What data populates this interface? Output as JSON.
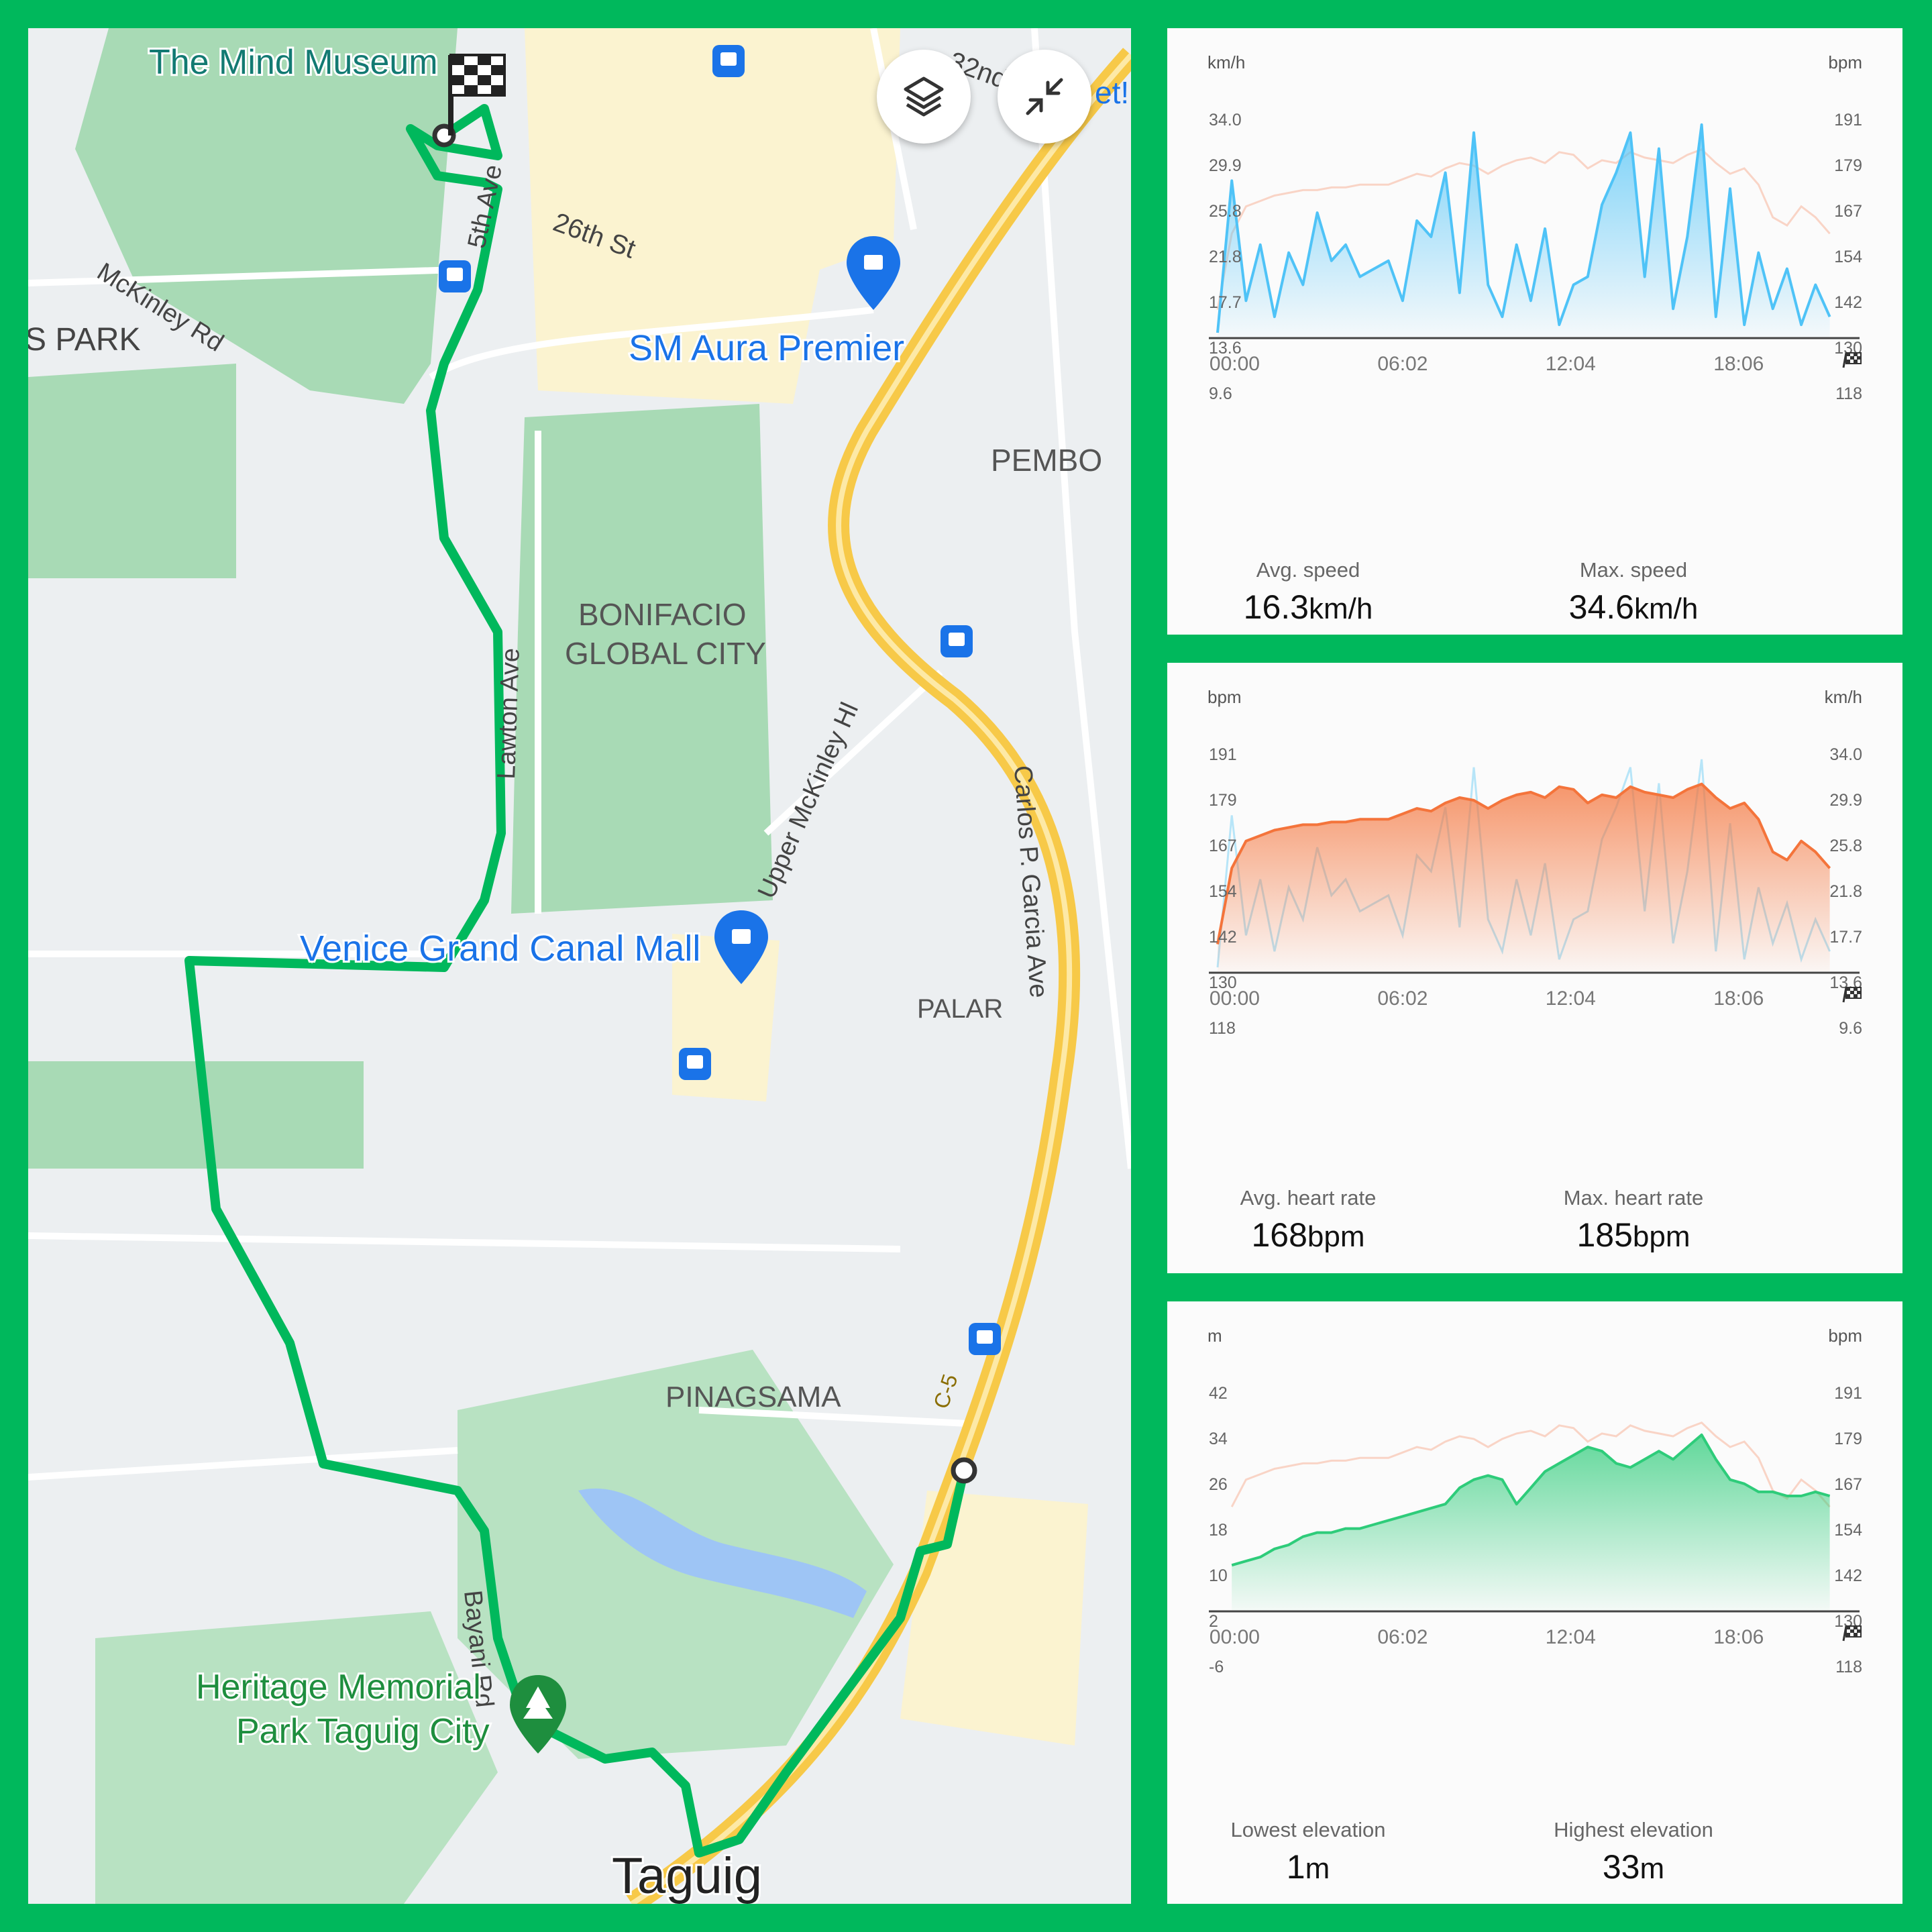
{
  "map": {
    "labels": {
      "mind_museum": "The Mind Museum",
      "street_32nd": "32nd",
      "street_cut": "et!",
      "fifth_ave": "5th Ave",
      "st_26th": "26th St",
      "mckinley_rd": "McKinley Rd",
      "s_park": "S PARK",
      "sm_aura": "SM Aura Premier",
      "pembo": "PEMBO",
      "bgc_line1": "BONIFACIO",
      "bgc_line2": "GLOBAL CITY",
      "lawton_ave": "Lawton Ave",
      "upper_mckinley": "Upper McKinley Hl",
      "carlos_garcia": "Carlos P. Garcia Ave",
      "venice_mall": "Venice Grand Canal Mall",
      "palar": "PALAR",
      "pinagsama": "PINAGSAMA",
      "c5": "C-5",
      "bayani_rd": "Bayani Rd",
      "heritage_line1": "Heritage Memorial",
      "heritage_line2": "Park Taguig City",
      "taguig": "Taguig"
    },
    "icons": [
      "layers-icon",
      "collapse-icon",
      "checkered-flag-icon",
      "bus-stop-icon",
      "shopping-bag-icon",
      "tree-icon"
    ],
    "route_color": "#00b85c"
  },
  "charts": {
    "speed": {
      "left_unit": "km/h",
      "right_unit": "bpm",
      "left_ticks": [
        "34.0",
        "29.9",
        "25.8",
        "21.8",
        "17.7",
        "13.6",
        "9.6"
      ],
      "right_ticks": [
        "191",
        "179",
        "167",
        "154",
        "142",
        "130",
        "118"
      ],
      "x_ticks": [
        "00:00",
        "06:02",
        "12:04",
        "18:06"
      ],
      "stats": [
        {
          "label": "Avg. speed",
          "value": "16.3",
          "unit": "km/h"
        },
        {
          "label": "Max. speed",
          "value": "34.6",
          "unit": "km/h"
        }
      ],
      "color": "#4fc3f7"
    },
    "heart_rate": {
      "left_unit": "bpm",
      "right_unit": "km/h",
      "left_ticks": [
        "191",
        "179",
        "167",
        "154",
        "142",
        "130",
        "118"
      ],
      "right_ticks": [
        "34.0",
        "29.9",
        "25.8",
        "21.8",
        "17.7",
        "13.6",
        "9.6"
      ],
      "x_ticks": [
        "00:00",
        "06:02",
        "12:04",
        "18:06"
      ],
      "stats": [
        {
          "label": "Avg. heart rate",
          "value": "168",
          "unit": "bpm"
        },
        {
          "label": "Max. heart rate",
          "value": "185",
          "unit": "bpm"
        }
      ],
      "color": "#f4743b"
    },
    "elevation": {
      "left_unit": "m",
      "right_unit": "bpm",
      "left_ticks": [
        "42",
        "34",
        "26",
        "18",
        "10",
        "2",
        "-6"
      ],
      "right_ticks": [
        "191",
        "179",
        "167",
        "154",
        "142",
        "130",
        "118"
      ],
      "x_ticks": [
        "00:00",
        "06:02",
        "12:04",
        "18:06"
      ],
      "stats": [
        {
          "label": "Lowest elevation",
          "value": "1",
          "unit": "m"
        },
        {
          "label": "Highest elevation",
          "value": "33",
          "unit": "m"
        }
      ],
      "color": "#2ecc7a"
    }
  },
  "chart_data": [
    {
      "type": "area",
      "title": "",
      "xlabel": "",
      "ylabel": "km/h",
      "ylim": [
        7.5,
        36
      ],
      "x": [
        0,
        0.5,
        1,
        1.5,
        2,
        2.5,
        3,
        3.5,
        4,
        4.5,
        5,
        5.5,
        6,
        6.5,
        7,
        7.5,
        8,
        8.5,
        9,
        9.5,
        10,
        10.5,
        11,
        11.5,
        12,
        12.5,
        13,
        13.5,
        14,
        14.5,
        15,
        15.5,
        16,
        16.5,
        17,
        17.5,
        18,
        18.5,
        19,
        19.5,
        20,
        20.5,
        21,
        21.5
      ],
      "series": [
        {
          "name": "",
          "values": [
            8,
            27,
            12,
            19,
            10,
            18,
            14,
            23,
            17,
            19,
            15,
            16,
            17,
            12,
            22,
            20,
            28,
            13,
            33,
            14,
            10,
            19,
            12,
            21,
            9,
            14,
            15,
            24,
            28,
            33,
            15,
            31,
            11,
            20,
            34,
            10,
            26,
            9,
            18,
            11,
            16,
            9,
            14,
            10
          ]
        },
        {
          "name": "",
          "values": [
            122,
            150,
            160,
            162,
            164,
            165,
            166,
            166,
            167,
            167,
            168,
            168,
            168,
            170,
            172,
            171,
            174,
            176,
            175,
            172,
            175,
            177,
            178,
            176,
            180,
            179,
            174,
            177,
            176,
            180,
            178,
            177,
            176,
            179,
            181,
            176,
            172,
            174,
            168,
            156,
            153,
            160,
            156,
            150
          ]
        }
      ],
      "x_ticks": [
        "00:00",
        "06:02",
        "12:04",
        "18:06"
      ]
    },
    {
      "type": "area",
      "title": "",
      "xlabel": "",
      "ylabel": "bpm",
      "ylim": [
        112,
        196
      ],
      "x": [
        0,
        0.5,
        1,
        1.5,
        2,
        2.5,
        3,
        3.5,
        4,
        4.5,
        5,
        5.5,
        6,
        6.5,
        7,
        7.5,
        8,
        8.5,
        9,
        9.5,
        10,
        10.5,
        11,
        11.5,
        12,
        12.5,
        13,
        13.5,
        14,
        14.5,
        15,
        15.5,
        16,
        16.5,
        17,
        17.5,
        18,
        18.5,
        19,
        19.5,
        20,
        20.5,
        21,
        21.5
      ],
      "series": [
        {
          "name": "",
          "values": [
            122,
            150,
            160,
            162,
            164,
            165,
            166,
            166,
            167,
            167,
            168,
            168,
            168,
            170,
            172,
            171,
            174,
            176,
            175,
            172,
            175,
            177,
            178,
            176,
            180,
            179,
            174,
            177,
            176,
            180,
            178,
            177,
            176,
            179,
            181,
            176,
            172,
            174,
            168,
            156,
            153,
            160,
            156,
            150
          ]
        },
        {
          "name": "",
          "values": [
            8,
            27,
            12,
            19,
            10,
            18,
            14,
            23,
            17,
            19,
            15,
            16,
            17,
            12,
            22,
            20,
            28,
            13,
            33,
            14,
            10,
            19,
            12,
            21,
            9,
            14,
            15,
            24,
            28,
            33,
            15,
            31,
            11,
            20,
            34,
            10,
            26,
            9,
            18,
            11,
            16,
            9,
            14,
            10
          ]
        }
      ],
      "x_ticks": [
        "00:00",
        "06:02",
        "12:04",
        "18:06"
      ]
    },
    {
      "type": "area",
      "title": "",
      "xlabel": "",
      "ylabel": "m",
      "ylim": [
        -10,
        46
      ],
      "x": [
        0.5,
        1,
        1.5,
        2,
        2.5,
        3,
        3.5,
        4,
        4.5,
        5,
        5.5,
        6,
        6.5,
        7,
        7.5,
        8,
        8.5,
        9,
        9.5,
        10,
        10.5,
        11,
        11.5,
        12,
        12.5,
        13,
        13.5,
        14,
        14.5,
        15,
        15.5,
        16,
        16.5,
        17,
        17.5,
        18,
        18.5,
        19,
        19.5,
        20,
        20.5,
        21,
        21.5
      ],
      "series": [
        {
          "name": "",
          "values": [
            1,
            2,
            3,
            5,
            6,
            8,
            9,
            9,
            10,
            10,
            11,
            12,
            13,
            14,
            15,
            16,
            20,
            22,
            23,
            22,
            16,
            20,
            24,
            26,
            28,
            30,
            29,
            26,
            25,
            27,
            29,
            27,
            30,
            33,
            27,
            22,
            21,
            19,
            19,
            18,
            18,
            19,
            18
          ]
        },
        {
          "name": "",
          "values": [
            150,
            160,
            162,
            164,
            165,
            166,
            166,
            167,
            167,
            168,
            168,
            168,
            170,
            172,
            171,
            174,
            176,
            175,
            172,
            175,
            177,
            178,
            176,
            180,
            179,
            174,
            177,
            176,
            180,
            178,
            177,
            176,
            179,
            181,
            176,
            172,
            174,
            168,
            156,
            153,
            160,
            156,
            150
          ]
        }
      ],
      "x_ticks": [
        "00:00",
        "06:02",
        "12:04",
        "18:06"
      ]
    }
  ]
}
